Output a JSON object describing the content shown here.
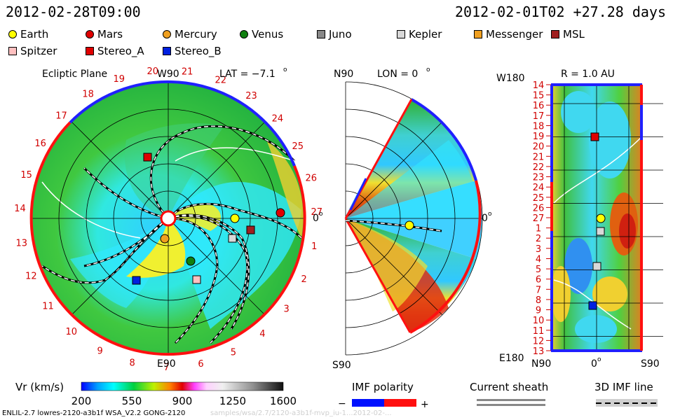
{
  "header": {
    "left_date": "2012-02-28T09:00",
    "right_date": "2012-02-01T02 +27.28 days"
  },
  "legend": {
    "bodies": [
      {
        "label": "Earth",
        "shape": "circle",
        "color": "#ffff00"
      },
      {
        "label": "Mars",
        "shape": "circle",
        "color": "#e00000"
      },
      {
        "label": "Mercury",
        "shape": "circle",
        "color": "#f0a020"
      },
      {
        "label": "Venus",
        "shape": "circle",
        "color": "#108010"
      },
      {
        "label": "Juno",
        "shape": "square",
        "color": "#888888"
      },
      {
        "label": "Kepler",
        "shape": "square",
        "color": "#d8d8d8"
      },
      {
        "label": "Messenger",
        "shape": "square",
        "color": "#f0a020"
      },
      {
        "label": "MSL",
        "shape": "square",
        "color": "#a02020"
      },
      {
        "label": "Spitzer",
        "shape": "square",
        "color": "#ffc0c0"
      },
      {
        "label": "Stereo_A",
        "shape": "square",
        "color": "#e00000"
      },
      {
        "label": "Stereo_B",
        "shape": "square",
        "color": "#0020e0"
      }
    ]
  },
  "ecliptic": {
    "title": "Ecliptic Plane",
    "top_label": "W90",
    "bottom_label": "E90",
    "right_label": "0",
    "lat_label": "LAT = −7.1",
    "degree": "o",
    "numbers": [
      "20",
      "21",
      "22",
      "23",
      "24",
      "25",
      "26",
      "27",
      "1",
      "2",
      "3",
      "4",
      "5",
      "6",
      "7",
      "8",
      "9",
      "10",
      "11",
      "12",
      "13",
      "14",
      "15",
      "16",
      "17",
      "18",
      "19"
    ]
  },
  "meridional": {
    "top_label": "N90",
    "bottom_label": "S90",
    "lon_label": "LON = 0",
    "right_label": "0",
    "degree": "o"
  },
  "lonlat": {
    "title": "R = 1.0 AU",
    "top_left": "W180",
    "bottom_left": "E180",
    "x_left": "N90",
    "x_mid": "0",
    "x_right": "S90",
    "degree": "o",
    "rows": [
      "14",
      "15",
      "16",
      "17",
      "18",
      "19",
      "20",
      "21",
      "22",
      "23",
      "24",
      "25",
      "26",
      "27",
      "1",
      "2",
      "3",
      "4",
      "5",
      "6",
      "7",
      "8",
      "9",
      "10",
      "11",
      "12",
      "13"
    ]
  },
  "colorbar": {
    "label": "Vr (km/s)",
    "ticks": [
      "200",
      "550",
      "900",
      "1250",
      "1600"
    ]
  },
  "imf_polarity": {
    "label": "IMF polarity",
    "minus": "−",
    "plus": "+"
  },
  "current_sheath": {
    "label": "Current sheath"
  },
  "imf_line": {
    "label": "3D IMF line"
  },
  "footer": {
    "model": "ENLIL-2.7 lowres-2120-a3b1f WSA_V2.2 GONG-2120",
    "faint": "samples/wsa/2.7/2120-a3b1f-mvp_iu-1...2012-02-..."
  }
}
